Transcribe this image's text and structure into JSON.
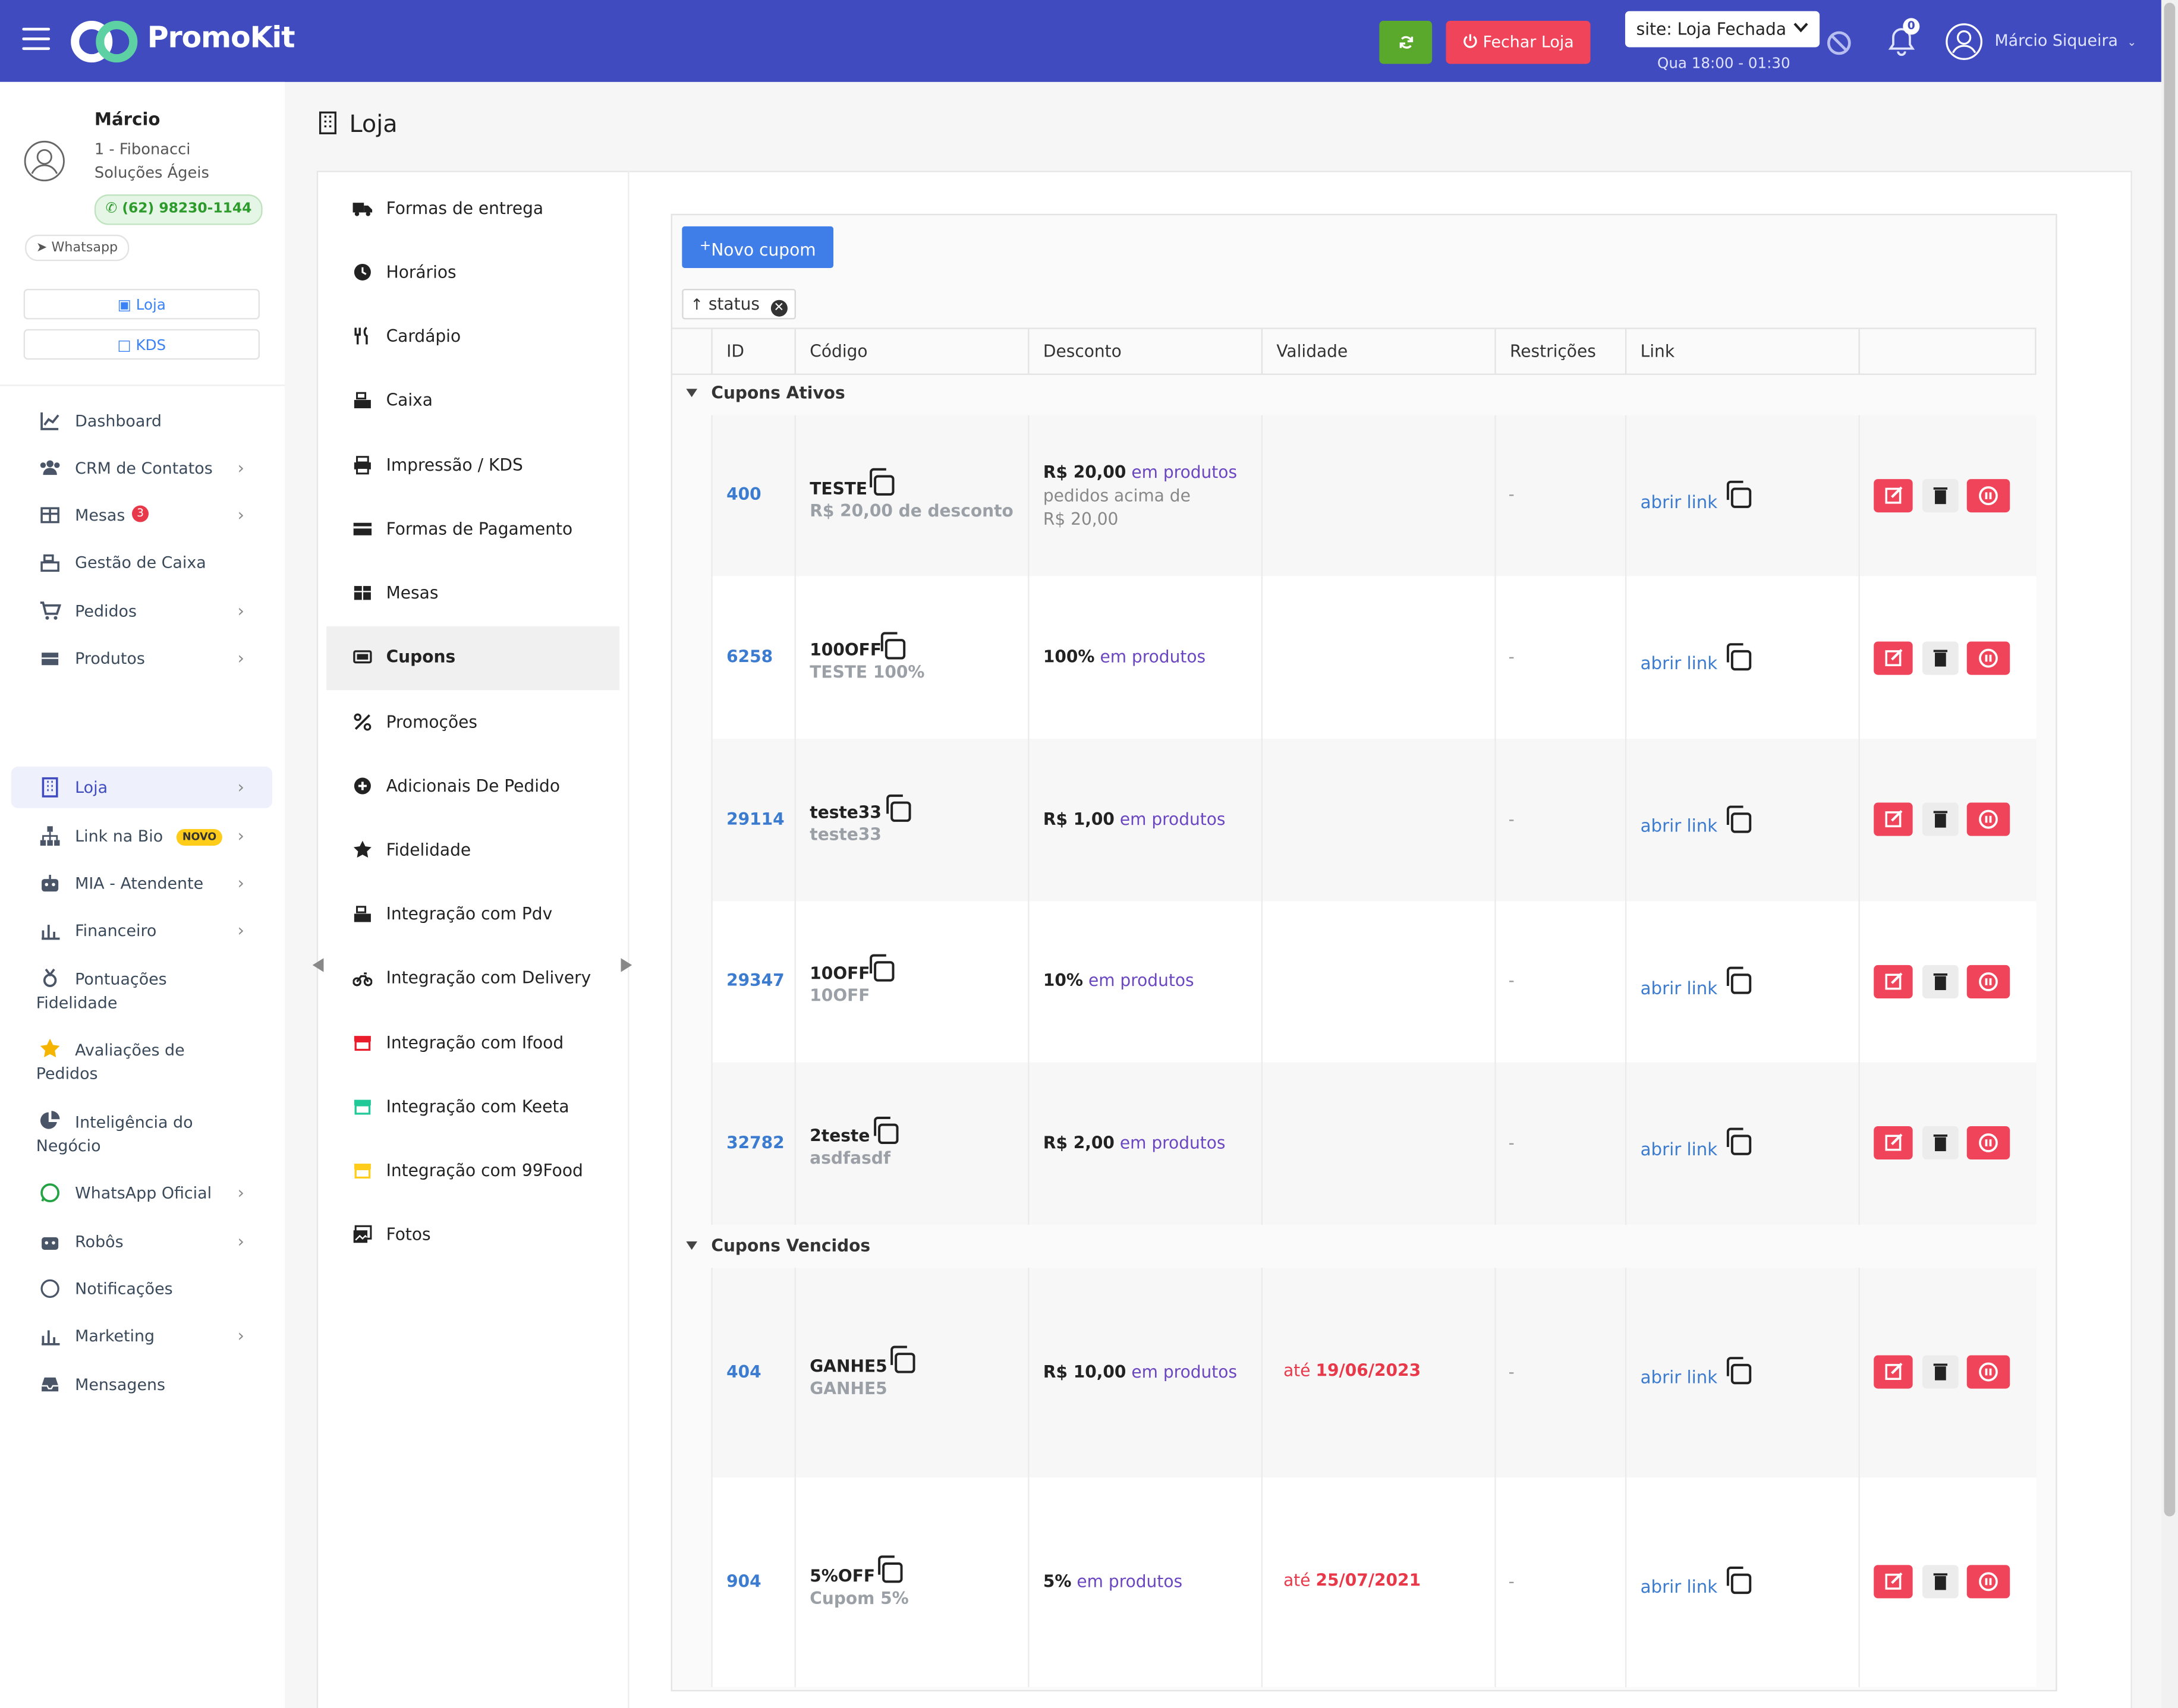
{
  "app": {
    "logo_text": "PromoKit",
    "fechar_label": "Fechar Loja",
    "site_status": "site: Loja Fechada",
    "hours": "Qua 18:00 - 01:30",
    "notifications": "0",
    "user_name": "Márcio Siqueira",
    "colors": {
      "topbar": "#3f4bbf",
      "green": "#5aa82c",
      "red": "#f0445a",
      "link": "#3b7bd0",
      "purple": "#6b46c1"
    }
  },
  "profile": {
    "name": "Márcio",
    "company": "1 - Fibonacci Soluções Ágeis",
    "phone": "(62) 98230-1144",
    "whatsapp_label": "Whatsapp",
    "btn_loja": "Loja",
    "btn_kds": "KDS"
  },
  "nav": {
    "dashboard": "Dashboard",
    "crm": "CRM de Contatos",
    "mesas": "Mesas",
    "mesas_badge": "3",
    "gestao": "Gestão de Caixa",
    "pedidos": "Pedidos",
    "produtos": "Produtos",
    "loja": "Loja",
    "linkbio": "Link na Bio",
    "novo": "NOVO",
    "mia": "MIA - Atendente",
    "financeiro": "Financeiro",
    "pontuacoes": "Pontuações Fidelidade",
    "avaliacoes": "Avaliações de Pedidos",
    "inteligencia": "Inteligência do Negócio",
    "whatsapp": "WhatsApp Oficial",
    "robos": "Robôs",
    "notificacoes": "Notificações",
    "marketing": "Marketing",
    "mensagens": "Mensagens"
  },
  "page": {
    "title": "Loja"
  },
  "submenu": [
    "Formas de entrega",
    "Horários",
    "Cardápio",
    "Caixa",
    "Impressão / KDS",
    "Formas de Pagamento",
    "Mesas",
    "Cupons",
    "Promoções",
    "Adicionais De Pedido",
    "Fidelidade",
    "Integração com Pdv",
    "Integração com Delivery",
    "Integração com Ifood",
    "Integração com Keeta",
    "Integração com 99Food",
    "Fotos"
  ],
  "grid": {
    "new_button": "Novo cupom",
    "group_by": "status",
    "columns": [
      "ID",
      "Código",
      "Desconto",
      "Validade",
      "Restrições",
      "Link"
    ],
    "group_active": "Cupons  Ativos",
    "group_expired": "Cupons  Vencidos",
    "link_label": "abrir link",
    "dash": "-",
    "rows": [
      {
        "id": "400",
        "code": "TESTE",
        "sub": "R$ 20,00 de desconto",
        "amount": "R$ 20,00",
        "scope": "em produtos",
        "extra1": "pedidos acima de",
        "extra2": "R$ 20,00",
        "valid_pre": "",
        "valid_date": ""
      },
      {
        "id": "6258",
        "code": "100OFF",
        "sub": "TESTE 100%",
        "amount": "100%",
        "scope": "em produtos",
        "extra1": "",
        "extra2": "",
        "valid_pre": "",
        "valid_date": ""
      },
      {
        "id": "29114",
        "code": "teste33",
        "sub": "teste33",
        "amount": "R$ 1,00",
        "scope": "em produtos",
        "extra1": "",
        "extra2": "",
        "valid_pre": "",
        "valid_date": ""
      },
      {
        "id": "29347",
        "code": "10OFF",
        "sub": "10OFF",
        "amount": "10%",
        "scope": "em produtos",
        "extra1": "",
        "extra2": "",
        "valid_pre": "",
        "valid_date": ""
      },
      {
        "id": "32782",
        "code": "2teste",
        "sub": "asdfasdf",
        "amount": "R$ 2,00",
        "scope": "em produtos",
        "extra1": "",
        "extra2": "",
        "valid_pre": "",
        "valid_date": ""
      },
      {
        "id": "404",
        "code": "GANHE5",
        "sub": "GANHE5",
        "amount": "R$ 10,00",
        "scope": "em produtos",
        "extra1": "",
        "extra2": "",
        "valid_pre": "até",
        "valid_date": "19/06/2023"
      },
      {
        "id": "904",
        "code": "5%OFF",
        "sub": "Cupom 5%",
        "amount": "5%",
        "scope": "em produtos",
        "extra1": "",
        "extra2": "",
        "valid_pre": "até",
        "valid_date": "25/07/2021"
      }
    ]
  }
}
